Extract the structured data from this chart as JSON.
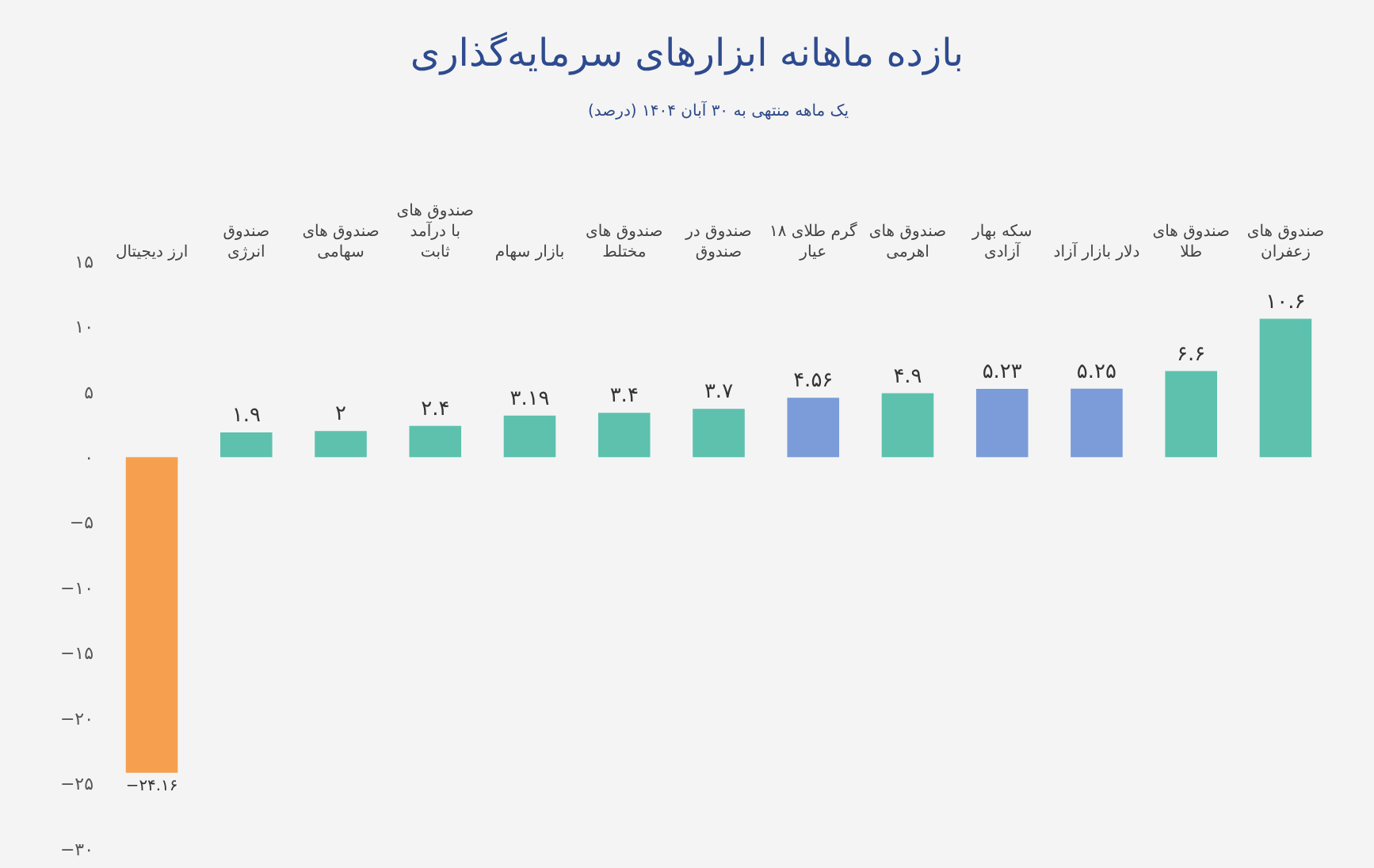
{
  "chart_data": {
    "type": "bar",
    "title": "بازده ماهانه ابزارهای سرمایه‌گذاری",
    "subtitle": "یک ماهه منتهی به ۳۰ آبان ۱۴۰۴ (درصد)",
    "categories": [
      "ارز دیجیتال",
      "صندوق\nانرژی",
      "صندوق های\nسهامی",
      "صندوق های\nبا درآمد\nثابت",
      "بازار سهام",
      "صندوق های\nمختلط",
      "صندوق در\nصندوق",
      "گرم طلای ۱۸\nعیار",
      "صندوق های\nاهرمی",
      "سکه بهار\nآزادی",
      "دلار بازار آزاد",
      "صندوق های\nطلا",
      "صندوق های\nزعفران"
    ],
    "values": [
      -24.16,
      1.9,
      2,
      2.4,
      3.19,
      3.4,
      3.7,
      4.56,
      4.9,
      5.23,
      5.25,
      6.6,
      10.6
    ],
    "value_labels": [
      "−۲۴.۱۶",
      "۱.۹",
      "۲",
      "۲.۴",
      "۳.۱۹",
      "۳.۴",
      "۳.۷",
      "۴.۵۶",
      "۴.۹",
      "۵.۲۳",
      "۵.۲۵",
      "۶.۶",
      "۱۰.۶"
    ],
    "colors": [
      "#f6a04f",
      "#5dc1ae",
      "#5dc1ae",
      "#5dc1ae",
      "#5dc1ae",
      "#5dc1ae",
      "#5dc1ae",
      "#7b9cd8",
      "#5dc1ae",
      "#7b9cd8",
      "#7b9cd8",
      "#5dc1ae",
      "#5dc1ae"
    ],
    "ylim": [
      -30,
      15
    ],
    "yticks": [
      {
        "value": 15,
        "label": "۱۵"
      },
      {
        "value": 10,
        "label": "۱۰"
      },
      {
        "value": 5,
        "label": "۵"
      },
      {
        "value": 0,
        "label": "۰"
      },
      {
        "value": -5,
        "label": "−۵"
      },
      {
        "value": -10,
        "label": "−۱۰"
      },
      {
        "value": -15,
        "label": "−۱۵"
      },
      {
        "value": -20,
        "label": "−۲۰"
      },
      {
        "value": -25,
        "label": "−۲۵"
      },
      {
        "value": -30,
        "label": "−۳۰"
      }
    ],
    "grid": false
  }
}
